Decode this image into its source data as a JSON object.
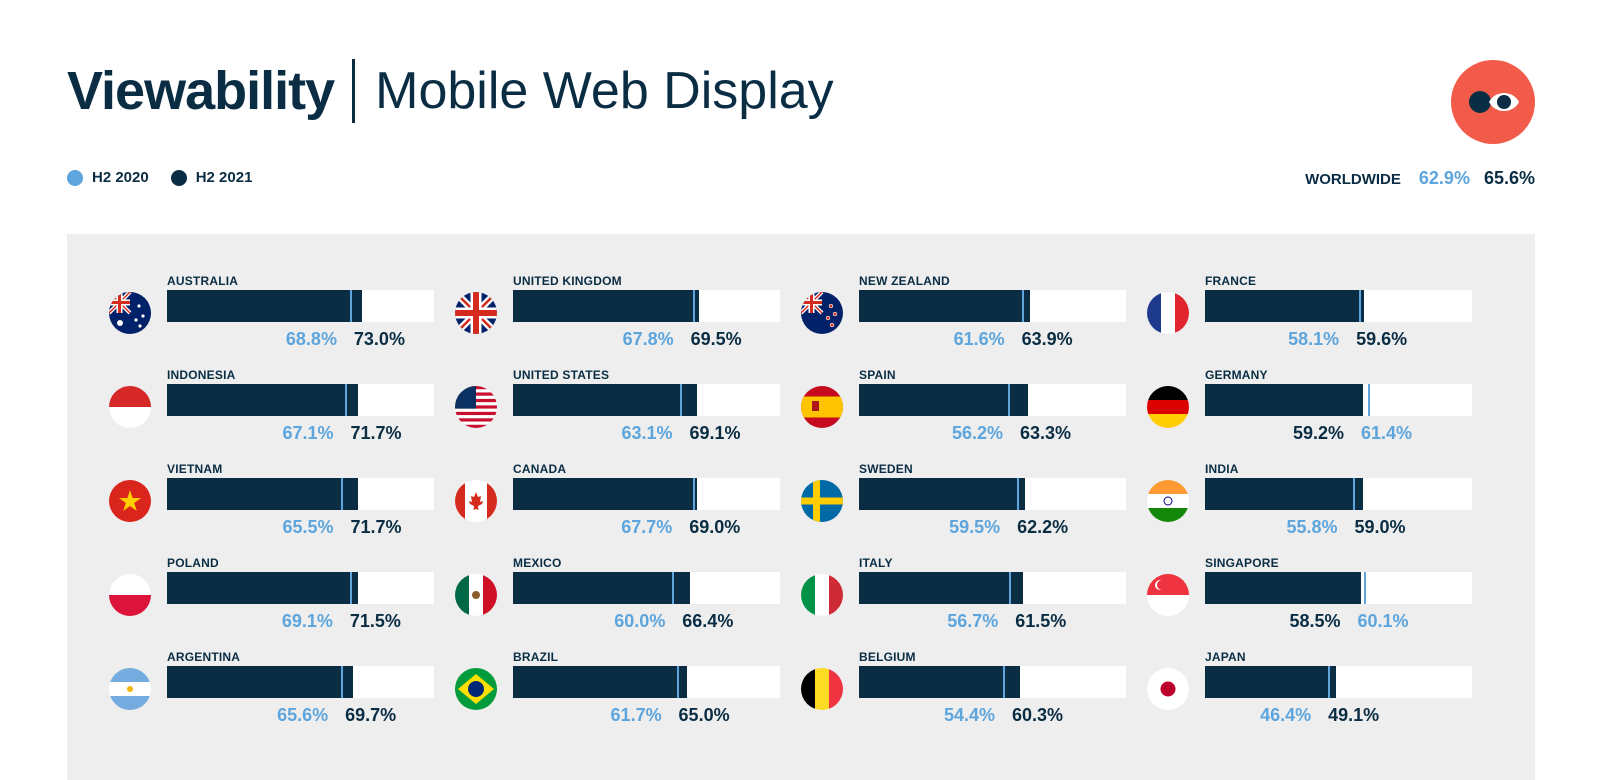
{
  "header": {
    "title_bold": "Viewability",
    "title_light": "Mobile Web Display"
  },
  "legend": {
    "h2_2020": "H2 2020",
    "h2_2021": "H2 2021"
  },
  "worldwide": {
    "label": "WORLDWIDE",
    "v2020": "62.9%",
    "v2021": "65.6%"
  },
  "colors": {
    "h2_2020": "#5da5dc",
    "h2_2021": "#0a2d44",
    "brand": "#f25a49",
    "panel": "#eeeeee"
  },
  "logo": {
    "icon": "eye-logo-icon"
  },
  "chart_data": {
    "type": "bar",
    "title": "",
    "xlabel": "",
    "ylabel": "",
    "ylim": [
      0,
      100
    ],
    "series": [
      {
        "name": "H2 2020",
        "color": "#5da5dc"
      },
      {
        "name": "H2 2021",
        "color": "#0a2d44"
      }
    ],
    "countries": [
      {
        "name": "AUSTRALIA",
        "flag": "australia-flag-icon",
        "v2020": 68.8,
        "v2021": 73.0,
        "label2020": "68.8%",
        "label2021": "73.0%"
      },
      {
        "name": "UNITED KINGDOM",
        "flag": "united-kingdom-flag-icon",
        "v2020": 67.8,
        "v2021": 69.5,
        "label2020": "67.8%",
        "label2021": "69.5%"
      },
      {
        "name": "NEW ZEALAND",
        "flag": "new-zealand-flag-icon",
        "v2020": 61.6,
        "v2021": 63.9,
        "label2020": "61.6%",
        "label2021": "63.9%"
      },
      {
        "name": "FRANCE",
        "flag": "france-flag-icon",
        "v2020": 58.1,
        "v2021": 59.6,
        "label2020": "58.1%",
        "label2021": "59.6%"
      },
      {
        "name": "INDONESIA",
        "flag": "indonesia-flag-icon",
        "v2020": 67.1,
        "v2021": 71.7,
        "label2020": "67.1%",
        "label2021": "71.7%"
      },
      {
        "name": "UNITED STATES",
        "flag": "united-states-flag-icon",
        "v2020": 63.1,
        "v2021": 69.1,
        "label2020": "63.1%",
        "label2021": "69.1%"
      },
      {
        "name": "SPAIN",
        "flag": "spain-flag-icon",
        "v2020": 56.2,
        "v2021": 63.3,
        "label2020": "56.2%",
        "label2021": "63.3%"
      },
      {
        "name": "GERMANY",
        "flag": "germany-flag-icon",
        "v2020": 61.4,
        "v2021": 59.2,
        "label2020": "61.4%",
        "label2021": "59.2%"
      },
      {
        "name": "VIETNAM",
        "flag": "vietnam-flag-icon",
        "v2020": 65.5,
        "v2021": 71.7,
        "label2020": "65.5%",
        "label2021": "71.7%"
      },
      {
        "name": "CANADA",
        "flag": "canada-flag-icon",
        "v2020": 67.7,
        "v2021": 69.0,
        "label2020": "67.7%",
        "label2021": "69.0%"
      },
      {
        "name": "SWEDEN",
        "flag": "sweden-flag-icon",
        "v2020": 59.5,
        "v2021": 62.2,
        "label2020": "59.5%",
        "label2021": "62.2%"
      },
      {
        "name": "INDIA",
        "flag": "india-flag-icon",
        "v2020": 55.8,
        "v2021": 59.0,
        "label2020": "55.8%",
        "label2021": "59.0%"
      },
      {
        "name": "POLAND",
        "flag": "poland-flag-icon",
        "v2020": 69.1,
        "v2021": 71.5,
        "label2020": "69.1%",
        "label2021": "71.5%"
      },
      {
        "name": "MEXICO",
        "flag": "mexico-flag-icon",
        "v2020": 60.0,
        "v2021": 66.4,
        "label2020": "60.0%",
        "label2021": "66.4%"
      },
      {
        "name": "ITALY",
        "flag": "italy-flag-icon",
        "v2020": 56.7,
        "v2021": 61.5,
        "label2020": "56.7%",
        "label2021": "61.5%"
      },
      {
        "name": "SINGAPORE",
        "flag": "singapore-flag-icon",
        "v2020": 60.1,
        "v2021": 58.5,
        "label2020": "60.1%",
        "label2021": "58.5%"
      },
      {
        "name": "ARGENTINA",
        "flag": "argentina-flag-icon",
        "v2020": 65.6,
        "v2021": 69.7,
        "label2020": "65.6%",
        "label2021": "69.7%"
      },
      {
        "name": "BRAZIL",
        "flag": "brazil-flag-icon",
        "v2020": 61.7,
        "v2021": 65.0,
        "label2020": "61.7%",
        "label2021": "65.0%"
      },
      {
        "name": "BELGIUM",
        "flag": "belgium-flag-icon",
        "v2020": 54.4,
        "v2021": 60.3,
        "label2020": "54.4%",
        "label2021": "60.3%"
      },
      {
        "name": "JAPAN",
        "flag": "japan-flag-icon",
        "v2020": 46.4,
        "v2021": 49.1,
        "label2020": "46.4%",
        "label2021": "49.1%"
      }
    ]
  }
}
